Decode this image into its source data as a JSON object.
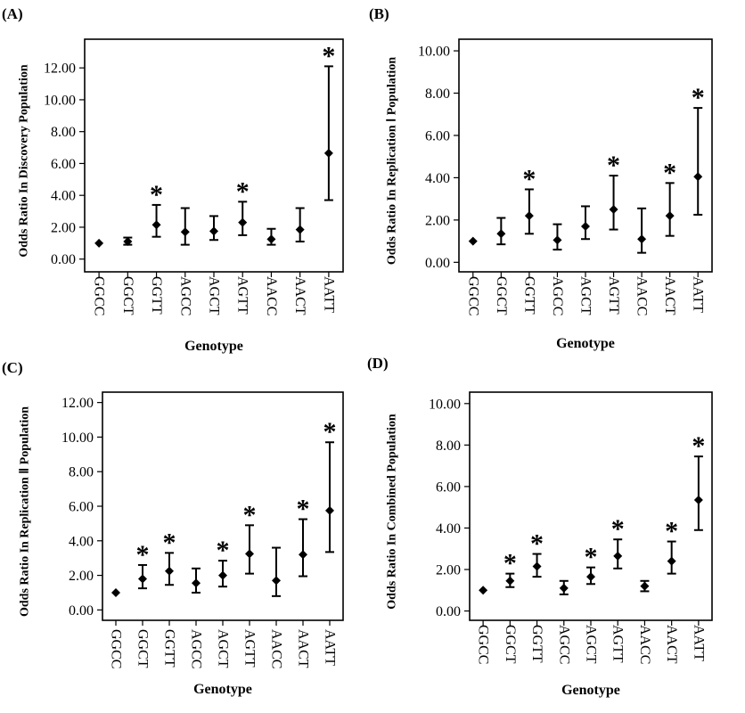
{
  "chart_data": [
    {
      "type": "scatter",
      "panel_label": "(A)",
      "ylabel": "Odds Ratio In Discovery Population",
      "xlabel": "Genotype",
      "categories": [
        "GGCC",
        "GGCT",
        "GGTT",
        "AGCC",
        "AGCT",
        "AGTT",
        "AACC",
        "AACT",
        "AATT"
      ],
      "y_ticks": [
        "0.00",
        "2.00",
        "4.00",
        "6.00",
        "8.00",
        "10.00",
        "12.00"
      ],
      "ylim": [
        -0.8,
        13.8
      ],
      "series": [
        {
          "estimate": [
            1.0,
            1.1,
            2.15,
            1.7,
            1.75,
            2.3,
            1.25,
            1.85,
            6.65
          ],
          "lower": [
            1.0,
            0.9,
            1.4,
            0.9,
            1.2,
            1.5,
            0.9,
            1.1,
            3.7
          ],
          "upper": [
            1.0,
            1.35,
            3.4,
            3.2,
            2.7,
            3.6,
            1.9,
            3.2,
            12.1
          ],
          "significant": [
            false,
            false,
            true,
            false,
            false,
            true,
            false,
            false,
            true
          ]
        }
      ]
    },
    {
      "type": "scatter",
      "panel_label": "(B)",
      "ylabel": "Odds Ratio In Replication Ⅰ Population",
      "xlabel": "Genotype",
      "categories": [
        "GGCC",
        "GGCT",
        "GGTT",
        "AGCC",
        "AGCT",
        "AGTT",
        "AACC",
        "AACT",
        "AATT"
      ],
      "y_ticks": [
        "0.00",
        "2.00",
        "4.00",
        "6.00",
        "8.00",
        "10.00"
      ],
      "ylim": [
        -0.45,
        10.55
      ],
      "series": [
        {
          "estimate": [
            1.0,
            1.35,
            2.2,
            1.05,
            1.7,
            2.5,
            1.1,
            2.2,
            4.05
          ],
          "lower": [
            1.0,
            0.85,
            1.35,
            0.6,
            1.1,
            1.55,
            0.45,
            1.25,
            2.25
          ],
          "upper": [
            1.0,
            2.1,
            3.45,
            1.8,
            2.65,
            4.1,
            2.55,
            3.75,
            7.3
          ],
          "significant": [
            false,
            false,
            true,
            false,
            false,
            true,
            false,
            true,
            true
          ]
        }
      ]
    },
    {
      "type": "scatter",
      "panel_label": "(C)",
      "ylabel": "Odds Ratio In Replication Ⅱ Population",
      "xlabel": "Genotype",
      "categories": [
        "GGCC",
        "GGCT",
        "GGTT",
        "AGCC",
        "AGCT",
        "AGTT",
        "AACC",
        "AACT",
        "AATT"
      ],
      "y_ticks": [
        "0.00",
        "2.00",
        "4.00",
        "6.00",
        "8.00",
        "10.00",
        "12.00"
      ],
      "ylim": [
        -0.6,
        12.6
      ],
      "series": [
        {
          "estimate": [
            1.0,
            1.8,
            2.25,
            1.55,
            2.0,
            3.25,
            1.7,
            3.2,
            5.75
          ],
          "lower": [
            1.0,
            1.25,
            1.45,
            1.0,
            1.35,
            2.1,
            0.8,
            1.95,
            3.35
          ],
          "upper": [
            1.0,
            2.6,
            3.3,
            2.4,
            2.85,
            4.9,
            3.6,
            5.25,
            9.7
          ],
          "significant": [
            false,
            true,
            true,
            false,
            true,
            true,
            false,
            true,
            true
          ]
        }
      ]
    },
    {
      "type": "scatter",
      "panel_label": "(D)",
      "ylabel": "Odds Ratio In Combined Population",
      "xlabel": "Genotype",
      "categories": [
        "GGCC",
        "GGCT",
        "GGTT",
        "AGCC",
        "AGCT",
        "AGTT",
        "AACC",
        "AACT",
        "AATT"
      ],
      "y_ticks": [
        "0.00",
        "2.00",
        "4.00",
        "6.00",
        "8.00",
        "10.00"
      ],
      "ylim": [
        -0.45,
        10.55
      ],
      "series": [
        {
          "estimate": [
            1.0,
            1.45,
            2.15,
            1.1,
            1.65,
            2.65,
            1.2,
            2.4,
            5.35
          ],
          "lower": [
            1.0,
            1.15,
            1.65,
            0.8,
            1.3,
            2.05,
            0.95,
            1.8,
            3.9
          ],
          "upper": [
            1.0,
            1.8,
            2.75,
            1.45,
            2.1,
            3.45,
            1.45,
            3.35,
            7.45
          ],
          "significant": [
            false,
            true,
            true,
            false,
            true,
            true,
            false,
            true,
            true
          ]
        }
      ]
    }
  ]
}
